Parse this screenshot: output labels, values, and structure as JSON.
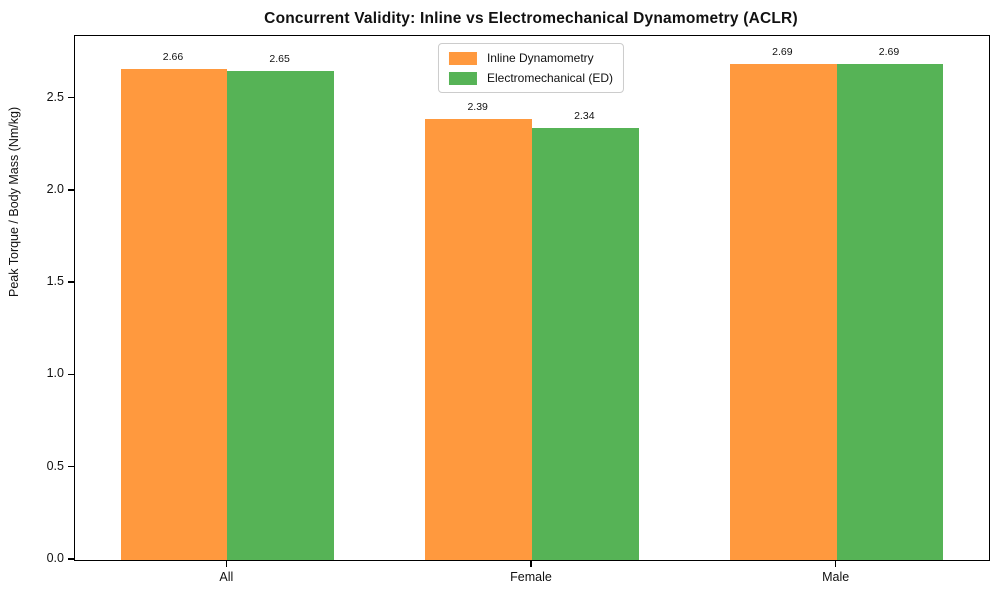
{
  "figure": {
    "title": "Concurrent Validity: Inline vs Electromechanical Dynamometry (ACLR)"
  },
  "chart_data": {
    "type": "bar",
    "title": "Concurrent Validity: Inline vs Electromechanical Dynamometry (ACLR)",
    "xlabel": "",
    "ylabel": "Peak Torque / Body Mass (Nm/kg)",
    "categories": [
      "All",
      "Female",
      "Male"
    ],
    "series": [
      {
        "name": "Inline Dynamometry",
        "color": "#FF993E",
        "values": [
          2.66,
          2.39,
          2.69
        ]
      },
      {
        "name": "Electromechanical (ED)",
        "color": "#56B356",
        "values": [
          2.65,
          2.34,
          2.69
        ]
      }
    ],
    "value_label_format": "2dp",
    "yticks": [
      0.0,
      0.5,
      1.0,
      1.5,
      2.0,
      2.5
    ],
    "ytick_labels": [
      "0.0",
      "0.5",
      "1.0",
      "1.5",
      "2.0",
      "2.5"
    ],
    "ylim": [
      0,
      2.84
    ],
    "bar_width_fraction": 0.35,
    "grid": false,
    "legend_position": "upper center",
    "colors": {
      "inline_orange": "#FF993E",
      "electromechanical_green": "#56B356",
      "spine": "#000000",
      "text": "#111111",
      "legend_border": "#cccccc",
      "background": "#ffffff"
    }
  }
}
